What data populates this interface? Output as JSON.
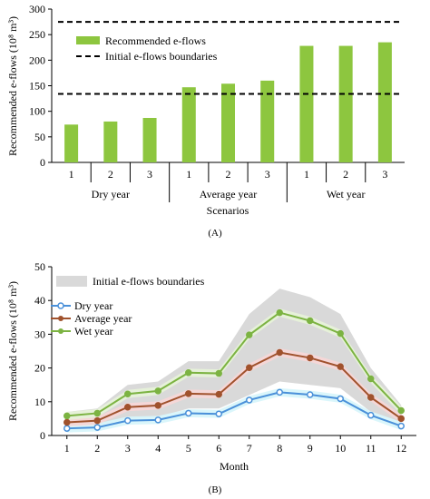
{
  "chart_data": [
    {
      "type": "bar",
      "panel_label": "(A)",
      "ylabel": "Recommended e-flows (10⁸ m³)",
      "xlabel": "Scenarios",
      "ylim": [
        0,
        300
      ],
      "yticks": [
        0,
        50,
        100,
        150,
        200,
        250,
        300
      ],
      "grid": false,
      "bar_color": "#8dc63f",
      "legend_position": "top-left",
      "legend": {
        "bars": "Recommended e-flows",
        "boundaries": "Initial e-flows boundaries"
      },
      "groups": [
        {
          "name": "Dry year",
          "categories": [
            "1",
            "2",
            "3"
          ],
          "values": [
            74,
            80,
            87
          ]
        },
        {
          "name": "Average year",
          "categories": [
            "1",
            "2",
            "3"
          ],
          "values": [
            147,
            154,
            160
          ]
        },
        {
          "name": "Wet year",
          "categories": [
            "1",
            "2",
            "3"
          ],
          "values": [
            228,
            228,
            235
          ]
        }
      ],
      "boundaries": [
        134,
        275
      ]
    },
    {
      "type": "line",
      "panel_label": "(B)",
      "ylabel": "Recommended e-flows (10⁸ m³)",
      "xlabel": "Month",
      "ylim": [
        0,
        50
      ],
      "yticks": [
        0,
        10,
        20,
        30,
        40,
        50
      ],
      "x": [
        1,
        2,
        3,
        4,
        5,
        6,
        7,
        8,
        9,
        10,
        11,
        12
      ],
      "grid": false,
      "legend_position": "top-left",
      "band": {
        "name": "Initial e-flows boundaries",
        "color": "#d9d9d9",
        "upper": [
          7,
          8,
          15,
          16,
          22,
          22,
          36,
          43.5,
          41,
          36,
          20,
          9
        ],
        "lower": [
          3,
          3,
          5,
          5.5,
          8,
          8,
          12,
          16,
          15,
          14,
          7,
          4
        ]
      },
      "series": [
        {
          "name": "Dry year",
          "color": "#4a90d9",
          "shade": "#d6f5fb",
          "marker": "open-circle",
          "values": [
            2.1,
            2.4,
            4.4,
            4.6,
            6.6,
            6.4,
            10.5,
            12.8,
            12.1,
            10.9,
            6.0,
            2.8
          ]
        },
        {
          "name": "Average year",
          "color": "#a0522d",
          "shade": "#f7d6d6",
          "marker": "filled-circle",
          "values": [
            3.9,
            4.4,
            8.4,
            8.9,
            12.4,
            12.2,
            20.1,
            24.6,
            23.0,
            20.4,
            11.3,
            5.0
          ]
        },
        {
          "name": "Wet year",
          "color": "#7cb342",
          "shade": "#e7f3d8",
          "marker": "filled-circle",
          "values": [
            5.8,
            6.6,
            12.3,
            13.2,
            18.6,
            18.4,
            29.8,
            36.4,
            34.0,
            30.2,
            16.8,
            7.4
          ]
        }
      ]
    }
  ]
}
